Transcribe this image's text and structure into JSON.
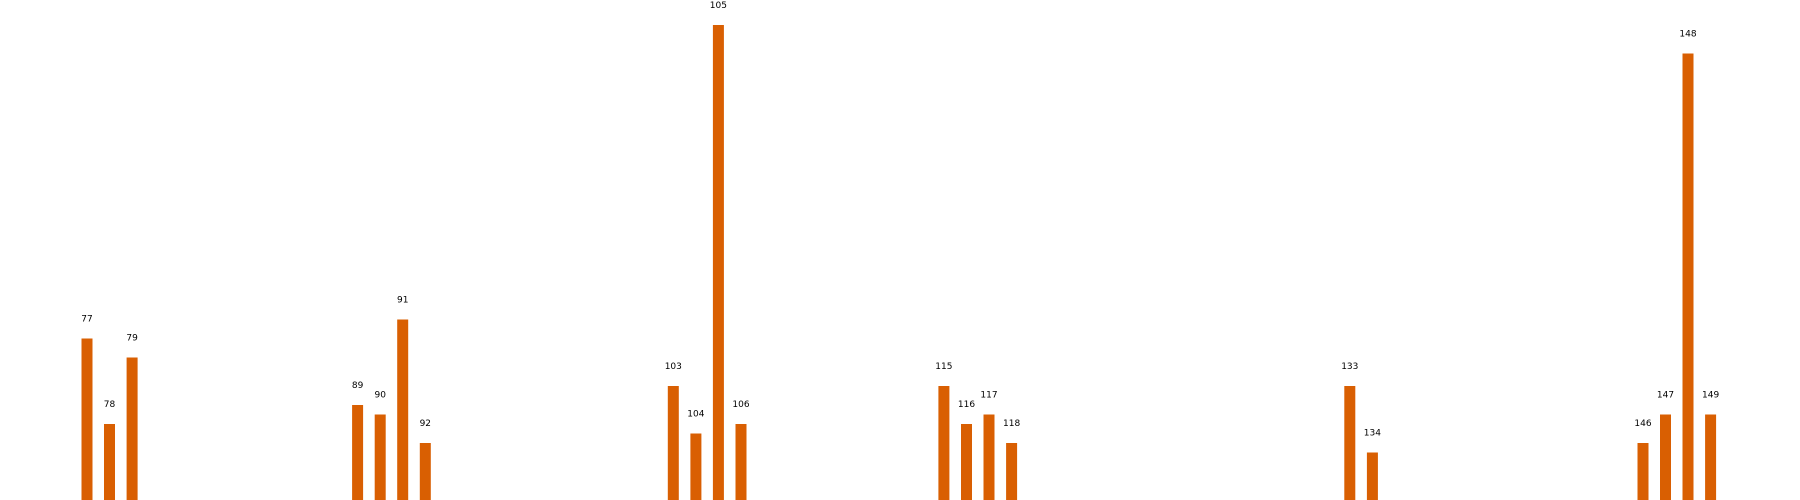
{
  "chart_data": {
    "type": "bar",
    "title": "",
    "xlabel": "",
    "ylabel": "",
    "bar_color": "#d95f02",
    "grid": false,
    "legend": "none",
    "axes_visible": false,
    "heights_shown": "bars drawn to relative magnitude; bar labels are item numbers",
    "bars": [
      {
        "label": "77",
        "pos": 77,
        "height": 17.0
      },
      {
        "label": "78",
        "pos": 78,
        "height": 8.0
      },
      {
        "label": "79",
        "pos": 79,
        "height": 15.0
      },
      {
        "label": "89",
        "pos": 89,
        "height": 10.0
      },
      {
        "label": "90",
        "pos": 90,
        "height": 9.0
      },
      {
        "label": "91",
        "pos": 91,
        "height": 19.0
      },
      {
        "label": "92",
        "pos": 92,
        "height": 6.0
      },
      {
        "label": "103",
        "pos": 103,
        "height": 12.0
      },
      {
        "label": "104",
        "pos": 104,
        "height": 7.0
      },
      {
        "label": "105",
        "pos": 105,
        "height": 50.0
      },
      {
        "label": "106",
        "pos": 106,
        "height": 8.0
      },
      {
        "label": "115",
        "pos": 115,
        "height": 12.0
      },
      {
        "label": "116",
        "pos": 116,
        "height": 8.0
      },
      {
        "label": "117",
        "pos": 117,
        "height": 9.0
      },
      {
        "label": "118",
        "pos": 118,
        "height": 6.0
      },
      {
        "label": "133",
        "pos": 133,
        "height": 12.0
      },
      {
        "label": "134",
        "pos": 134,
        "height": 5.0
      },
      {
        "label": "146",
        "pos": 146,
        "height": 6.0
      },
      {
        "label": "147",
        "pos": 147,
        "height": 9.0
      },
      {
        "label": "148",
        "pos": 148,
        "height": 47.0
      },
      {
        "label": "149",
        "pos": 149,
        "height": 9.0
      }
    ]
  }
}
